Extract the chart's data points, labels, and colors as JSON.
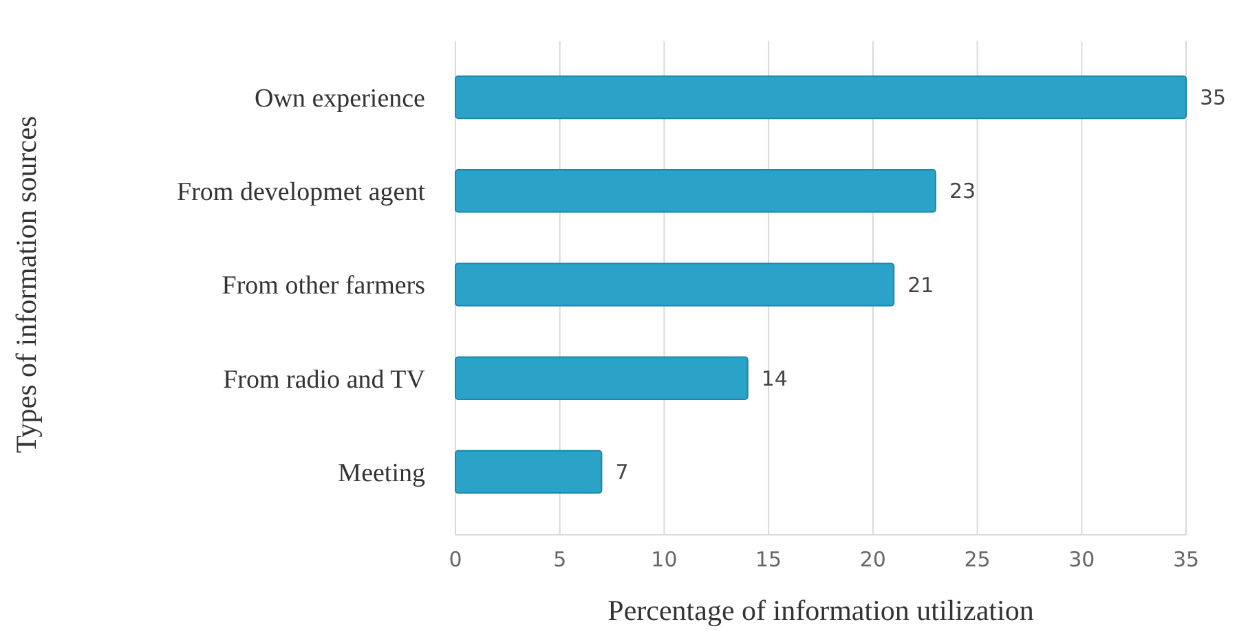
{
  "chart_data": {
    "type": "bar",
    "orientation": "horizontal",
    "categories": [
      "Own experience",
      "From developmet agent",
      "From other farmers",
      "From radio and TV",
      "Meeting"
    ],
    "values": [
      35,
      23,
      21,
      14,
      7
    ],
    "color": "#2ba3c9",
    "xlim": [
      0,
      35
    ],
    "xticks": [
      0,
      5,
      10,
      15,
      20,
      25,
      30,
      35
    ],
    "grid": "x",
    "data_labels": true,
    "xlabel": "Percentage of information utilization",
    "ylabel": "Types of information sources"
  }
}
